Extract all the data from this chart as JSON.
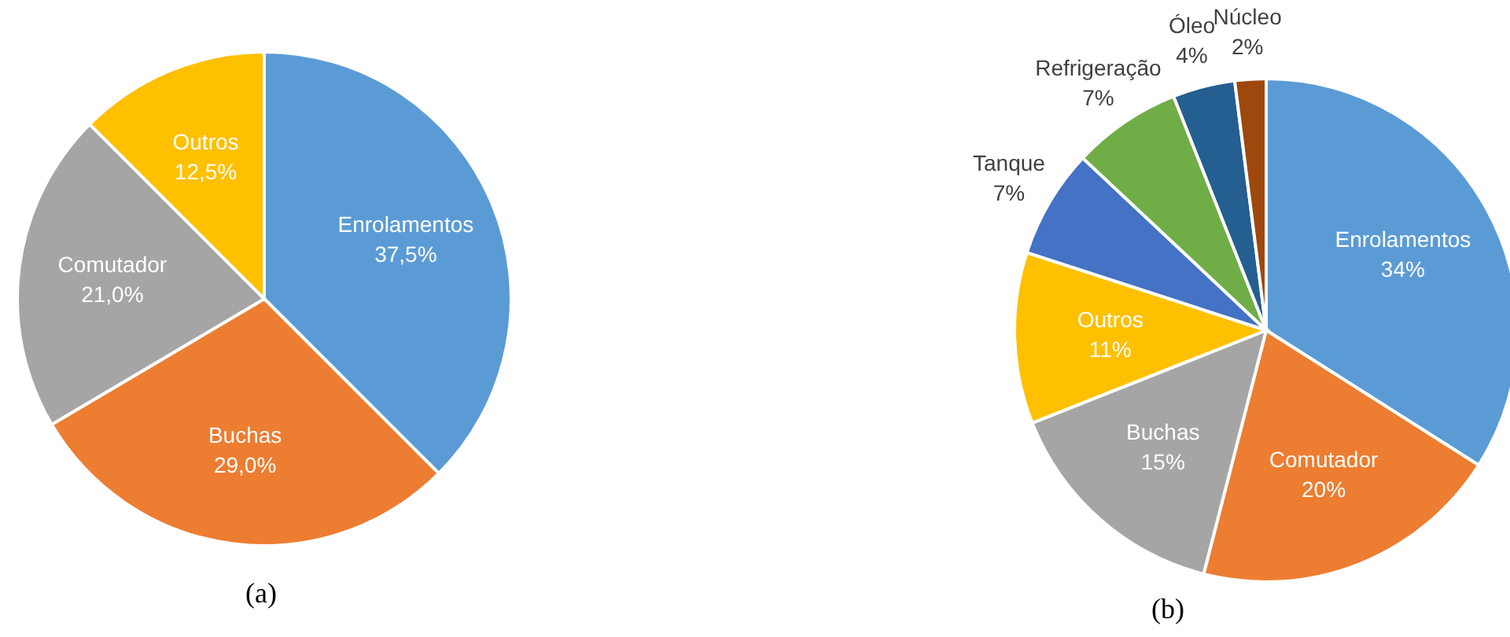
{
  "chart_data": [
    {
      "type": "pie",
      "categories": [
        "Enrolamentos",
        "Buchas",
        "Comutador",
        "Outros"
      ],
      "values": [
        37.5,
        29.0,
        21.0,
        12.5
      ],
      "colors": [
        "#5b9bd5",
        "#ed7d31",
        "#a5a5a5",
        "#ffc000"
      ],
      "value_labels": [
        "37,5%",
        "29,0%",
        "21,0%",
        "12,5%"
      ],
      "annotations": [
        "(a)"
      ]
    },
    {
      "type": "pie",
      "categories": [
        "Enrolamentos",
        "Comutador",
        "Buchas",
        "Outros",
        "Tanque",
        "Refrigeração",
        "Óleo",
        "Núcleo"
      ],
      "values": [
        34,
        20,
        15,
        11,
        7,
        7,
        4,
        2
      ],
      "colors": [
        "#5b9bd5",
        "#ed7d31",
        "#a5a5a5",
        "#ffc000",
        "#4472c4",
        "#70ad47",
        "#255e91",
        "#9e480e"
      ],
      "value_labels": [
        "34%",
        "20%",
        "15%",
        "11%",
        "7%",
        "7%",
        "4%",
        "2%"
      ],
      "annotations": [
        "(b)"
      ]
    }
  ]
}
